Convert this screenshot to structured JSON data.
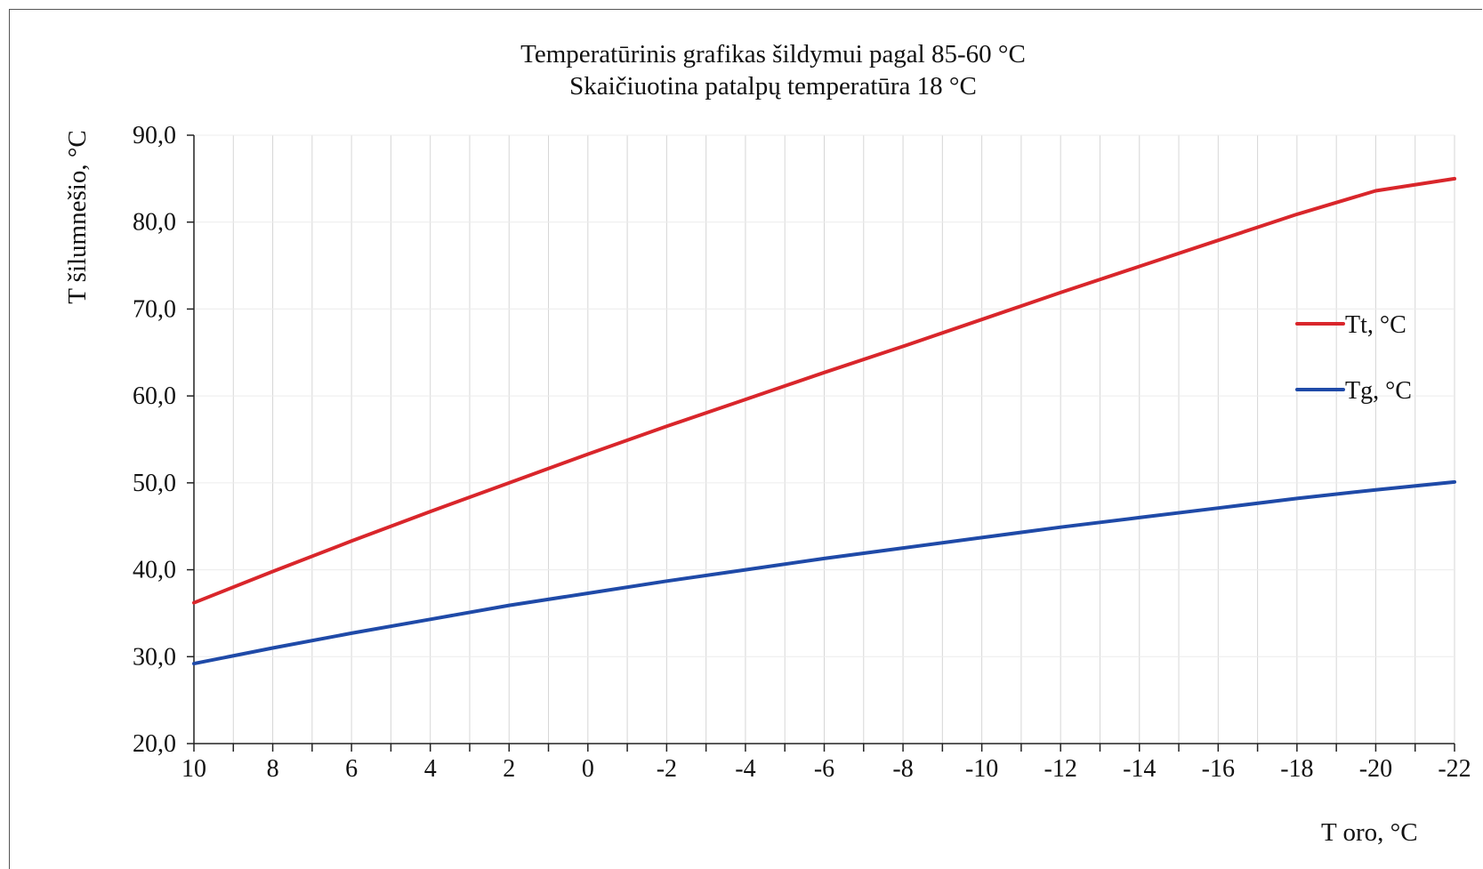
{
  "chart_data": {
    "type": "line",
    "title": "Temperatūrinis grafikas šildymui pagal 85-60 °C",
    "subtitle": "Skaičiuotina patalpų temperatūra 18 °C",
    "xlabel": "T oro, °C",
    "ylabel": "T šilumnešio, °C",
    "x": [
      10,
      8,
      6,
      4,
      2,
      0,
      -2,
      -4,
      -6,
      -8,
      -10,
      -12,
      -14,
      -16,
      -18,
      -20,
      -22
    ],
    "x_tick_labels": [
      "10",
      "8",
      "6",
      "4",
      "2",
      "0",
      "-2",
      "-4",
      "-6",
      "-8",
      "-10",
      "-12",
      "-14",
      "-16",
      "-18",
      "-20",
      "-22"
    ],
    "xlim": [
      10,
      -22
    ],
    "y_ticks": [
      20,
      30,
      40,
      50,
      60,
      70,
      80,
      90
    ],
    "y_tick_labels": [
      "20,0",
      "30,0",
      "40,0",
      "50,0",
      "60,0",
      "70,0",
      "80,0",
      "90,0"
    ],
    "ylim": [
      20,
      90
    ],
    "grid": "vertical",
    "legend_position": "right",
    "series": [
      {
        "name": "Tt, °C",
        "color": "#d9262b",
        "values": [
          36.2,
          39.8,
          43.3,
          46.7,
          50.0,
          53.3,
          56.5,
          59.6,
          62.7,
          65.7,
          68.8,
          71.9,
          74.9,
          77.9,
          80.9,
          83.6,
          85.0
        ]
      },
      {
        "name": "Tg, °C",
        "color": "#1f4aa8",
        "values": [
          29.2,
          31.0,
          32.7,
          34.3,
          35.9,
          37.3,
          38.7,
          40.0,
          41.3,
          42.5,
          43.7,
          44.9,
          46.0,
          47.1,
          48.2,
          49.2,
          50.1
        ]
      }
    ]
  }
}
